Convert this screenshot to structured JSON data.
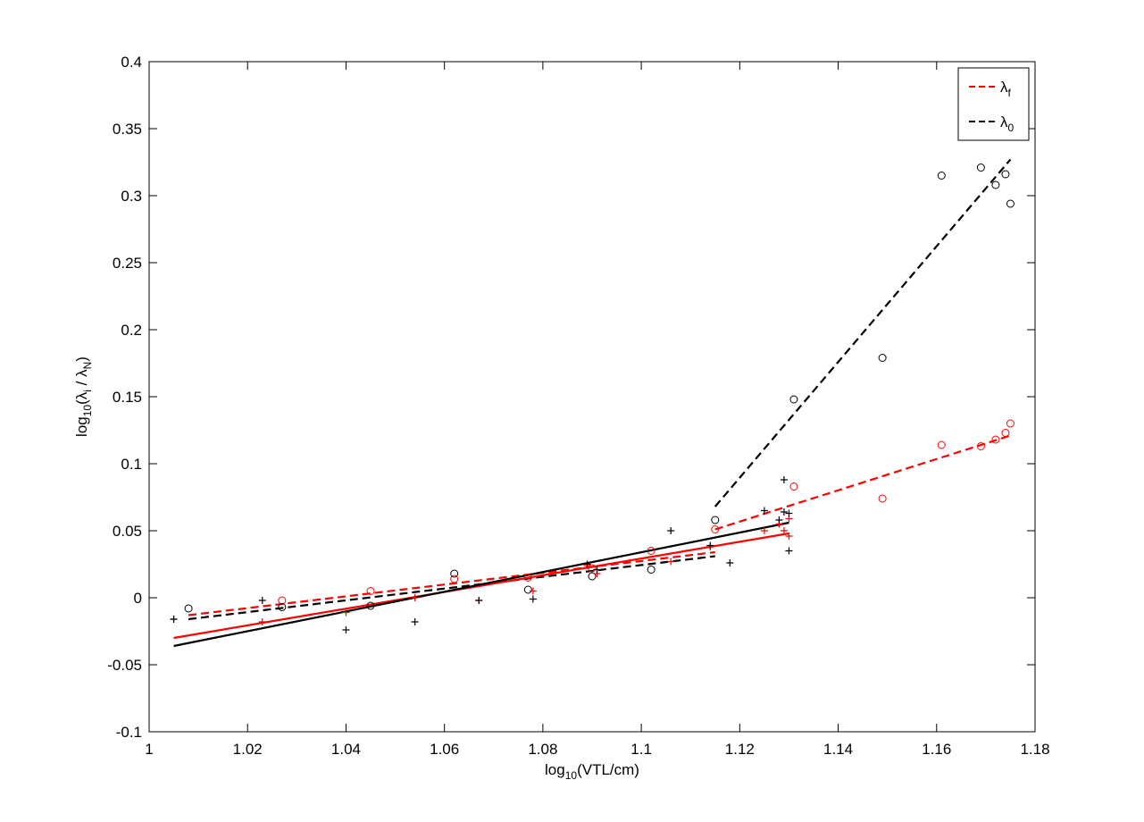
{
  "chart_data": {
    "type": "scatter",
    "xlim": [
      1.0,
      1.18
    ],
    "ylim": [
      -0.1,
      0.4
    ],
    "x_ticks": [
      "1",
      "1.02",
      "1.04",
      "1.06",
      "1.08",
      "1.1",
      "1.12",
      "1.14",
      "1.16",
      "1.18"
    ],
    "y_ticks": [
      "-0.1",
      "-0.05",
      "0",
      "0.05",
      "0.1",
      "0.15",
      "0.2",
      "0.25",
      "0.3",
      "0.35",
      "0.4"
    ],
    "xlabel": {
      "base": "log",
      "sub": "10",
      "text": "(VTL/cm)"
    },
    "ylabel": {
      "base": "log",
      "sub1": "10",
      "mid1": "(λ",
      "sub2": "i",
      "mid2": " / λ",
      "sub3": "N",
      "end": ")"
    },
    "legend": {
      "placement": "top-right",
      "entries": [
        {
          "symbol": "λ",
          "sub": "f",
          "color": "#ff0000",
          "dash": "dashed"
        },
        {
          "symbol": "λ",
          "sub": "0",
          "color": "#000000",
          "dash": "dashed"
        }
      ]
    },
    "series": [
      {
        "color": "#ff0000",
        "marker": "o",
        "points": [
          [
            1.027,
            -0.002
          ],
          [
            1.045,
            0.005
          ],
          [
            1.062,
            0.014
          ],
          [
            1.077,
            0.015
          ],
          [
            1.09,
            0.022
          ],
          [
            1.102,
            0.035
          ],
          [
            1.115,
            0.051
          ],
          [
            1.131,
            0.083
          ],
          [
            1.149,
            0.074
          ],
          [
            1.161,
            0.114
          ],
          [
            1.169,
            0.113
          ],
          [
            1.172,
            0.118
          ],
          [
            1.174,
            0.123
          ],
          [
            1.175,
            0.13
          ]
        ]
      },
      {
        "color": "#000000",
        "marker": "o",
        "points": [
          [
            1.008,
            -0.008
          ],
          [
            1.027,
            -0.007
          ],
          [
            1.045,
            -0.006
          ],
          [
            1.062,
            0.018
          ],
          [
            1.077,
            0.006
          ],
          [
            1.09,
            0.016
          ],
          [
            1.102,
            0.021
          ],
          [
            1.115,
            0.058
          ],
          [
            1.131,
            0.148
          ],
          [
            1.149,
            0.179
          ],
          [
            1.161,
            0.315
          ],
          [
            1.169,
            0.321
          ],
          [
            1.172,
            0.308
          ],
          [
            1.174,
            0.316
          ],
          [
            1.175,
            0.294
          ]
        ]
      },
      {
        "color": "#ff0000",
        "marker": "+",
        "points": [
          [
            1.005,
            -0.016
          ],
          [
            1.023,
            -0.018
          ],
          [
            1.04,
            -0.011
          ],
          [
            1.054,
            0.0
          ],
          [
            1.067,
            -0.002
          ],
          [
            1.078,
            0.005
          ],
          [
            1.089,
            0.024
          ],
          [
            1.091,
            0.018
          ],
          [
            1.106,
            0.027
          ],
          [
            1.114,
            0.038
          ],
          [
            1.125,
            0.05
          ],
          [
            1.128,
            0.055
          ],
          [
            1.129,
            0.05
          ],
          [
            1.13,
            0.046
          ],
          [
            1.13,
            0.059
          ]
        ]
      },
      {
        "color": "#000000",
        "marker": "+",
        "points": [
          [
            1.005,
            -0.016
          ],
          [
            1.023,
            -0.002
          ],
          [
            1.04,
            -0.024
          ],
          [
            1.054,
            -0.018
          ],
          [
            1.067,
            -0.002
          ],
          [
            1.078,
            -0.001
          ],
          [
            1.089,
            0.025
          ],
          [
            1.091,
            0.021
          ],
          [
            1.106,
            0.05
          ],
          [
            1.114,
            0.039
          ],
          [
            1.118,
            0.026
          ],
          [
            1.125,
            0.065
          ],
          [
            1.128,
            0.058
          ],
          [
            1.129,
            0.064
          ],
          [
            1.129,
            0.088
          ],
          [
            1.13,
            0.035
          ],
          [
            1.13,
            0.063
          ]
        ]
      }
    ],
    "fit_lines": [
      {
        "color": "#ff0000",
        "dash": "dashed",
        "x": [
          1.008,
          1.115
        ],
        "y": [
          -0.013,
          0.034
        ]
      },
      {
        "color": "#ff0000",
        "dash": "dashed",
        "x": [
          1.115,
          1.175
        ],
        "y": [
          0.051,
          0.121
        ]
      },
      {
        "color": "#000000",
        "dash": "dashed",
        "x": [
          1.008,
          1.115
        ],
        "y": [
          -0.016,
          0.031
        ]
      },
      {
        "color": "#000000",
        "dash": "dashed",
        "x": [
          1.115,
          1.175
        ],
        "y": [
          0.068,
          0.327
        ]
      },
      {
        "color": "#ff0000",
        "dash": "solid",
        "x": [
          1.005,
          1.13
        ],
        "y": [
          -0.03,
          0.048
        ]
      },
      {
        "color": "#000000",
        "dash": "solid",
        "x": [
          1.005,
          1.13
        ],
        "y": [
          -0.036,
          0.056
        ]
      }
    ]
  }
}
